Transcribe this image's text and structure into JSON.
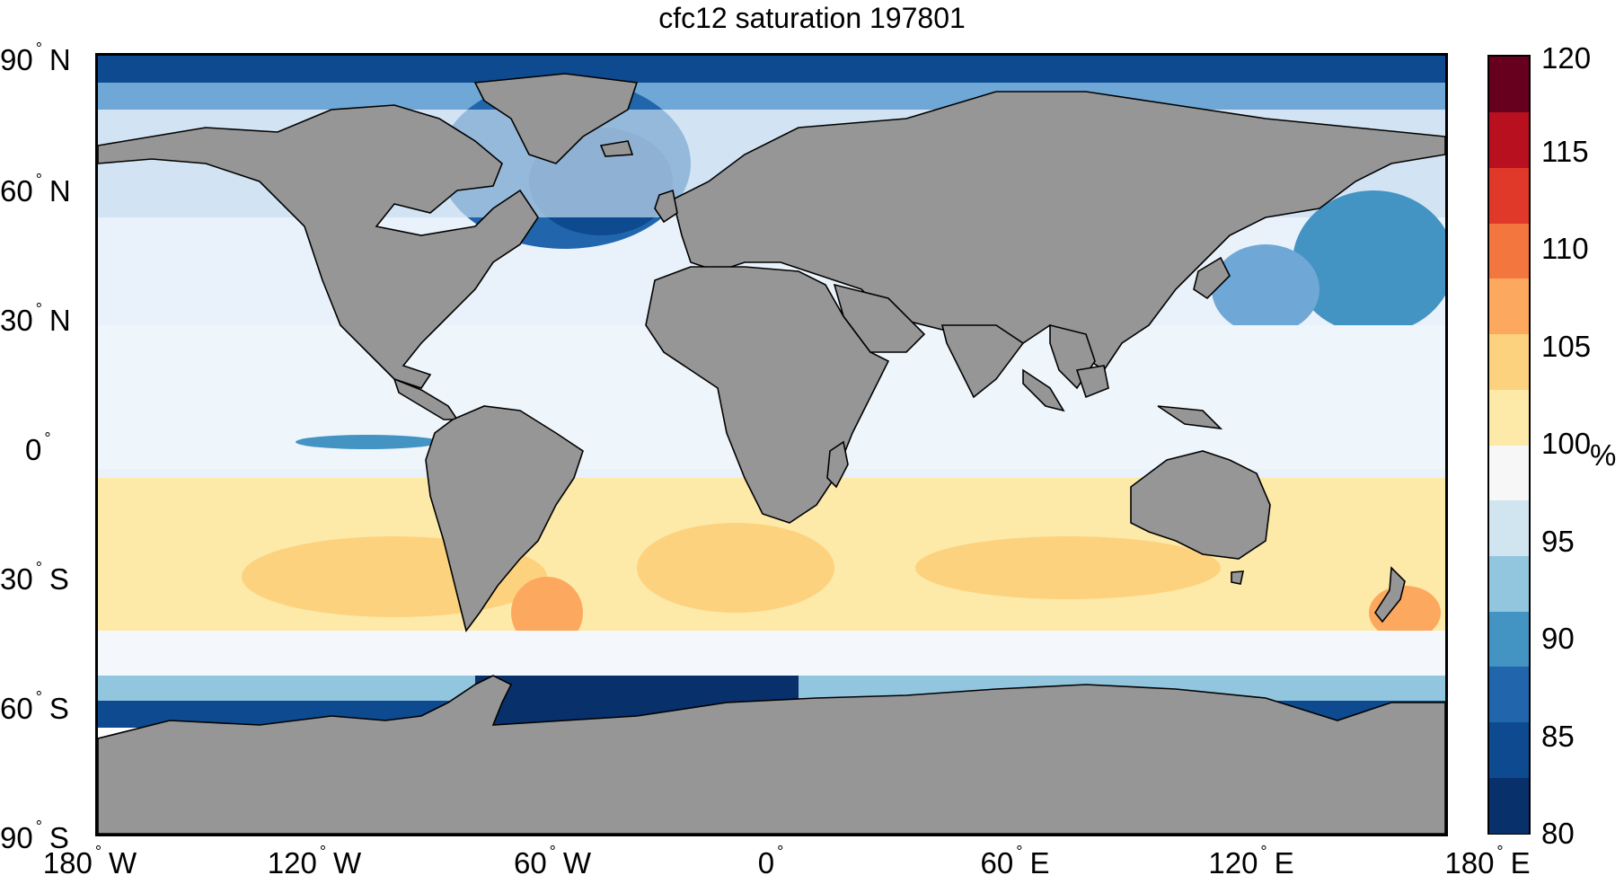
{
  "title": "cfc12 saturation 197801",
  "lat_labels": [
    {
      "deg": "90",
      "hemi": "N"
    },
    {
      "deg": "60",
      "hemi": "N"
    },
    {
      "deg": "30",
      "hemi": "N"
    },
    {
      "deg": "0",
      "hemi": ""
    },
    {
      "deg": "30",
      "hemi": "S"
    },
    {
      "deg": "60",
      "hemi": "S"
    },
    {
      "deg": "90",
      "hemi": "S"
    }
  ],
  "lon_labels": [
    {
      "deg": "180",
      "hemi": "W"
    },
    {
      "deg": "120",
      "hemi": "W"
    },
    {
      "deg": "60",
      "hemi": "W"
    },
    {
      "deg": "0",
      "hemi": ""
    },
    {
      "deg": "60",
      "hemi": "E"
    },
    {
      "deg": "120",
      "hemi": "E"
    },
    {
      "deg": "180",
      "hemi": "E"
    }
  ],
  "colorbar": {
    "ticks": [
      "80",
      "85",
      "90",
      "95",
      "100",
      "105",
      "110",
      "115",
      "120"
    ],
    "min": 80,
    "max": 120,
    "unit": "%",
    "colors": [
      "#08306b",
      "#0d4a8f",
      "#2166ac",
      "#4393c3",
      "#92c5de",
      "#d1e5f0",
      "#f7f7f7",
      "#fde9a8",
      "#fdd27e",
      "#fca85e",
      "#f4763f",
      "#e0392a",
      "#b8101f",
      "#67001f"
    ]
  },
  "colors": {
    "land": "#969696",
    "coast": "#000000",
    "ocean_neutral": "#f7fbff"
  }
}
